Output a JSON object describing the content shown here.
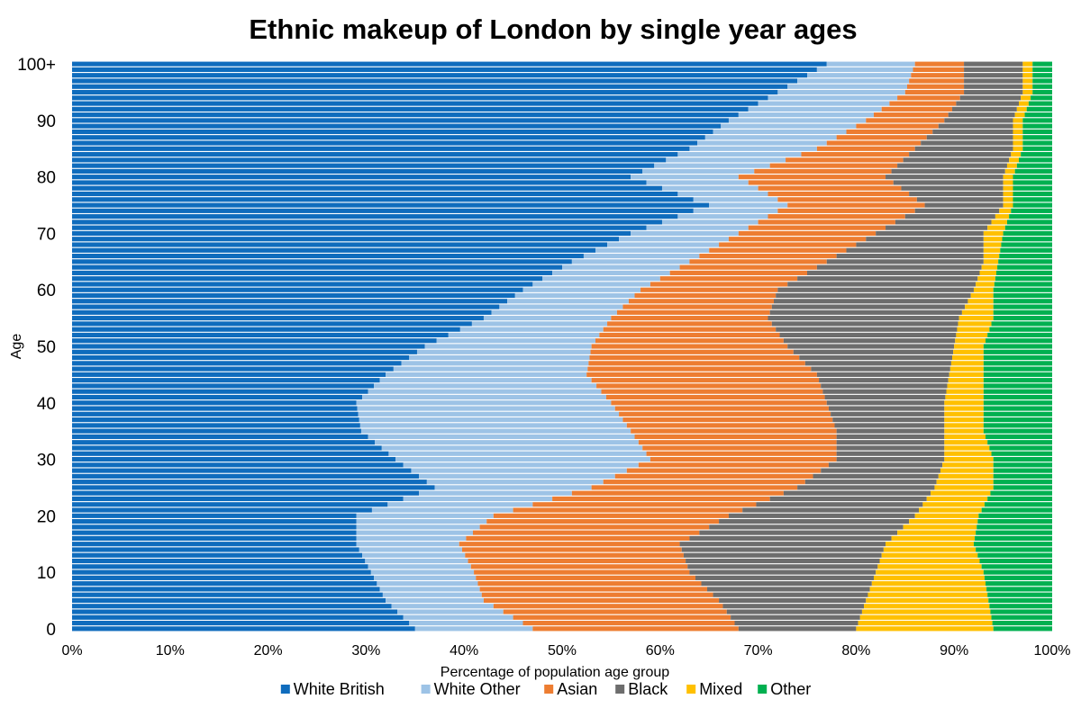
{
  "chart_data": {
    "type": "bar",
    "orientation": "horizontal",
    "stacked": "percent",
    "title": "Ethnic makeup of London by single year ages",
    "xlabel": "Percentage of population age group",
    "ylabel": "Age",
    "xlim": [
      0,
      100
    ],
    "ylim": [
      0,
      100
    ],
    "x_ticks": [
      "0%",
      "10%",
      "20%",
      "30%",
      "40%",
      "50%",
      "60%",
      "70%",
      "80%",
      "90%",
      "100%"
    ],
    "y_ticks": [
      "0",
      "10",
      "20",
      "30",
      "40",
      "50",
      "60",
      "70",
      "80",
      "90",
      "100+"
    ],
    "legend_position": "bottom",
    "grid": false,
    "categories_note": "ages 0 through 100+",
    "colors": {
      "White British": "#0f6cbd",
      "White Other": "#9dc3e6",
      "Asian": "#ed7d31",
      "Black": "#6d6d6d",
      "Mixed": "#ffc000",
      "Other": "#00b050"
    },
    "anchor_ages": [
      0,
      5,
      10,
      15,
      20,
      25,
      30,
      35,
      40,
      45,
      50,
      55,
      60,
      65,
      70,
      75,
      80,
      85,
      90,
      95,
      100
    ],
    "cumulative_boundaries": [
      {
        "name": "White British",
        "values": [
          35,
          32,
          30.5,
          29,
          29,
          37,
          33,
          29.5,
          29,
          32,
          36,
          42,
          46,
          51,
          57,
          65,
          57,
          63,
          67,
          72,
          77
        ]
      },
      {
        "name": "White Other",
        "values": [
          47,
          42,
          41,
          39.5,
          43,
          53,
          59,
          57,
          55,
          52.5,
          53,
          55,
          58,
          63,
          68,
          73,
          68,
          76,
          81,
          85,
          86
        ]
      },
      {
        "name": "Asian",
        "values": [
          68,
          66,
          63,
          62,
          67,
          74,
          78,
          78,
          77,
          76,
          73,
          71,
          72,
          77,
          82,
          87,
          83,
          86,
          89,
          91,
          91
        ]
      },
      {
        "name": "Black",
        "values": [
          80,
          81,
          82,
          83,
          86,
          88,
          89,
          89,
          89,
          89.5,
          90,
          90.5,
          92,
          93,
          93,
          95,
          95,
          96,
          96,
          97,
          97
        ]
      },
      {
        "name": "Mixed",
        "values": [
          94,
          93.5,
          93,
          92,
          92.5,
          94,
          94,
          93,
          93,
          93,
          93,
          94,
          94,
          94.5,
          95,
          96,
          96,
          97,
          97,
          98,
          98
        ]
      },
      {
        "name": "Other",
        "values": [
          100,
          100,
          100,
          100,
          100,
          100,
          100,
          100,
          100,
          100,
          100,
          100,
          100,
          100,
          100,
          100,
          100,
          100,
          100,
          100,
          100
        ]
      }
    ],
    "series": [
      {
        "name": "White British"
      },
      {
        "name": "White Other"
      },
      {
        "name": "Asian"
      },
      {
        "name": "Black"
      },
      {
        "name": "Mixed"
      },
      {
        "name": "Other"
      }
    ]
  }
}
